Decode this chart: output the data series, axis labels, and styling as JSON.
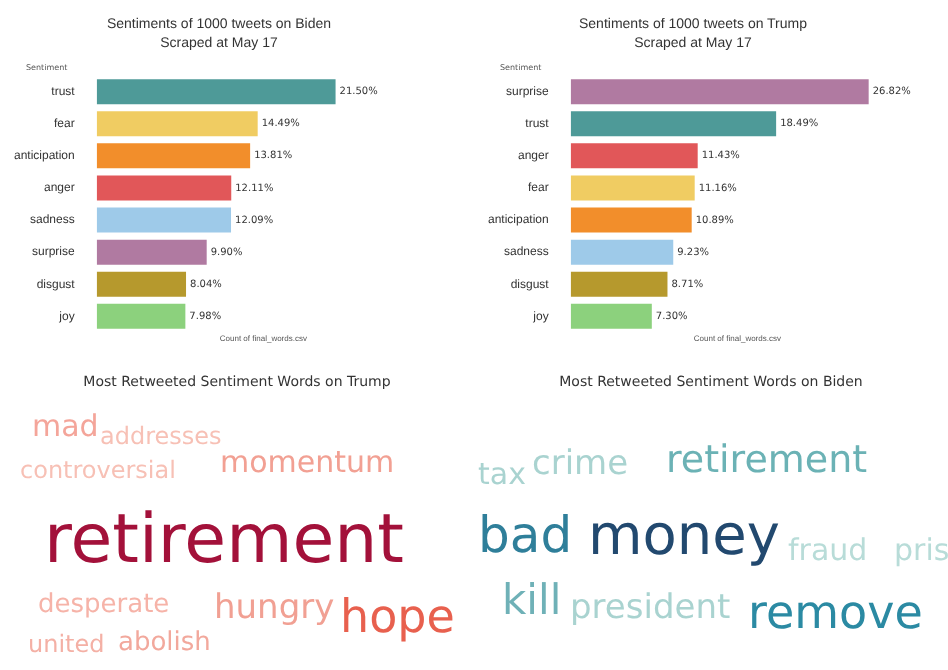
{
  "chart_data": [
    {
      "type": "bar",
      "orientation": "horizontal",
      "title": "Sentiments of 1000 tweets on Biden",
      "subtitle": "Scraped at May 17",
      "ylabel": "Sentiment",
      "xlabel": "Count of final_words.csv",
      "categories": [
        "trust",
        "fear",
        "anticipation",
        "anger",
        "sadness",
        "surprise",
        "disgust",
        "joy"
      ],
      "values": [
        21.5,
        14.49,
        13.81,
        12.11,
        12.09,
        9.9,
        8.04,
        7.98
      ],
      "value_labels": [
        "21.50%",
        "14.49%",
        "13.81%",
        "12.11%",
        "12.09%",
        "9.90%",
        "8.04%",
        "7.98%"
      ],
      "colors": [
        "#4e9a98",
        "#f0cc62",
        "#f28e2b",
        "#e15759",
        "#9ecae9",
        "#b07aa1",
        "#b6992d",
        "#8cd17d"
      ],
      "tick_labels": "y",
      "legend": false
    },
    {
      "type": "bar",
      "orientation": "horizontal",
      "title": "Sentiments of 1000 tweets on Trump",
      "subtitle": "Scraped at May 17",
      "ylabel": "Sentiment",
      "xlabel": "Count of final_words.csv",
      "categories": [
        "surprise",
        "trust",
        "anger",
        "fear",
        "anticipation",
        "sadness",
        "disgust",
        "joy"
      ],
      "values": [
        26.82,
        18.49,
        11.43,
        11.16,
        10.89,
        9.23,
        8.71,
        7.3
      ],
      "value_labels": [
        "26.82%",
        "18.49%",
        "11.43%",
        "11.16%",
        "10.89%",
        "9.23%",
        "8.71%",
        "7.30%"
      ],
      "colors": [
        "#b07aa1",
        "#4e9a98",
        "#e15759",
        "#f0cc62",
        "#f28e2b",
        "#9ecae9",
        "#b6992d",
        "#8cd17d"
      ],
      "tick_labels": "y",
      "legend": false
    },
    {
      "type": "other",
      "title": "Most Retweeted Sentiment Words on Trump",
      "annotations": [
        "mad",
        "addresses",
        "controversial",
        "momentum",
        "retirement",
        "desperate",
        "hungry",
        "hope",
        "united",
        "abolish"
      ],
      "colors": [
        "#f4a59a",
        "#f7c0b5",
        "#f7c0b5",
        "#f2a093",
        "#a3113a",
        "#f6b3a8",
        "#f1a093",
        "#e8604e",
        "#f4b0a5",
        "#f2a89c"
      ]
    },
    {
      "type": "other",
      "title": "Most Retweeted Sentiment Words on Biden",
      "annotations": [
        "tax",
        "crime",
        "retirement",
        "bad",
        "money",
        "fraud",
        "pris",
        "kill",
        "president",
        "remove"
      ],
      "colors": [
        "#a9d3d0",
        "#a9d3d0",
        "#6bb2b5",
        "#2f7f9a",
        "#22496f",
        "#b8dcd8",
        "#b8dcd8",
        "#6fb1b7",
        "#a9d3d0",
        "#2b8aa3"
      ]
    }
  ]
}
